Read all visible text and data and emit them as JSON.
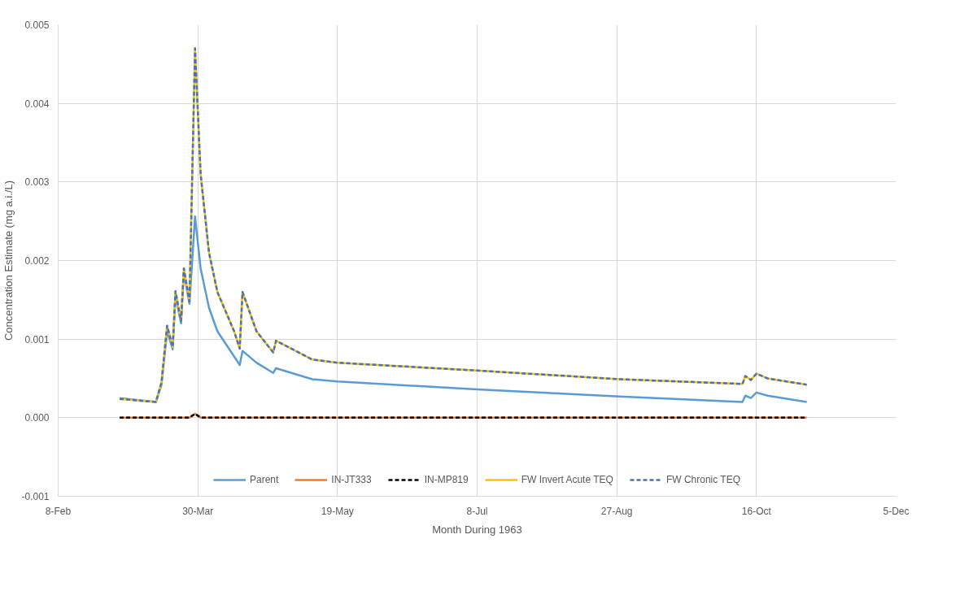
{
  "chart_data": {
    "type": "line",
    "xlabel": "Month During 1963",
    "ylabel": "Concentration Estimate (mg a.i./L)",
    "x": [
      "1963-03-02",
      "1963-03-15",
      "1963-03-17",
      "1963-03-19",
      "1963-03-21",
      "1963-03-22",
      "1963-03-24",
      "1963-03-25",
      "1963-03-27",
      "1963-03-29",
      "1963-03-31",
      "1963-04-03",
      "1963-04-06",
      "1963-04-12",
      "1963-04-14",
      "1963-04-15",
      "1963-04-20",
      "1963-04-26",
      "1963-04-27",
      "1963-05-10",
      "1963-05-19",
      "1963-07-08",
      "1963-08-28",
      "1963-10-11",
      "1963-10-12",
      "1963-10-14",
      "1963-10-16",
      "1963-10-20",
      "1963-11-03"
    ],
    "series": [
      {
        "name": "Parent",
        "color": "#5b9bd5",
        "line_style": "solid",
        "values": [
          0.00025,
          0.0002,
          0.00042,
          0.0011,
          0.00087,
          0.00155,
          0.0012,
          0.00185,
          0.00145,
          0.00256,
          0.0019,
          0.0014,
          0.0011,
          0.00078,
          0.00067,
          0.00085,
          0.0007,
          0.00057,
          0.00063,
          0.00049,
          0.00046,
          0.00036,
          0.00027,
          0.0002,
          0.00028,
          0.00025,
          0.00032,
          0.00028,
          0.0002
        ]
      },
      {
        "name": "IN-JT333",
        "color": "#ed7d31",
        "line_style": "solid",
        "values": [
          0,
          0,
          0,
          0,
          0,
          0,
          0,
          0,
          0,
          5e-05,
          0,
          0,
          0,
          0,
          0,
          0,
          0,
          0,
          0,
          0,
          0,
          0,
          0,
          0,
          0,
          0,
          0,
          0,
          0
        ]
      },
      {
        "name": "IN-MP819",
        "color": "#000000",
        "line_style": "dashed",
        "values": [
          0,
          0,
          0,
          0,
          0,
          0,
          0,
          0,
          0,
          5e-05,
          0,
          0,
          0,
          0,
          0,
          0,
          0,
          0,
          0,
          0,
          0,
          0,
          0,
          0,
          0,
          0,
          0,
          0,
          0
        ]
      },
      {
        "name": "FW Invert Acute TEQ",
        "color": "#ffc000",
        "line_style": "solid",
        "values": [
          0.00024,
          0.0002,
          0.00045,
          0.00117,
          0.0009,
          0.00161,
          0.00123,
          0.0019,
          0.00148,
          0.0047,
          0.0031,
          0.0021,
          0.0016,
          0.0011,
          0.00088,
          0.0016,
          0.0011,
          0.00083,
          0.00098,
          0.00074,
          0.0007,
          0.0006,
          0.00049,
          0.00043,
          0.00053,
          0.00048,
          0.00056,
          0.0005,
          0.00042
        ]
      },
      {
        "name": "FW Chronic TEQ",
        "color": "#4472c4",
        "line_style": "dashed",
        "values": [
          0.00024,
          0.0002,
          0.00045,
          0.00117,
          0.0009,
          0.00161,
          0.00123,
          0.0019,
          0.00148,
          0.0047,
          0.0031,
          0.0021,
          0.0016,
          0.0011,
          0.00088,
          0.0016,
          0.0011,
          0.00083,
          0.00098,
          0.00074,
          0.0007,
          0.0006,
          0.00049,
          0.00043,
          0.00053,
          0.00048,
          0.00056,
          0.0005,
          0.00042
        ]
      }
    ],
    "xlim": [
      "1963-02-08",
      "1963-12-05"
    ],
    "xticks": [
      {
        "value": "1963-02-08",
        "label": "8-Feb"
      },
      {
        "value": "1963-03-30",
        "label": "30-Mar"
      },
      {
        "value": "1963-05-19",
        "label": "19-May"
      },
      {
        "value": "1963-07-08",
        "label": "8-Jul"
      },
      {
        "value": "1963-08-27",
        "label": "27-Aug"
      },
      {
        "value": "1963-10-16",
        "label": "16-Oct"
      },
      {
        "value": "1963-12-05",
        "label": "5-Dec"
      }
    ],
    "ylim": [
      -0.001,
      0.005
    ],
    "yticks": [
      {
        "value": -0.001,
        "label": "-0.001"
      },
      {
        "value": 0,
        "label": "0.000"
      },
      {
        "value": 0.001,
        "label": "0.001"
      },
      {
        "value": 0.002,
        "label": "0.002"
      },
      {
        "value": 0.003,
        "label": "0.003"
      },
      {
        "value": 0.004,
        "label": "0.004"
      },
      {
        "value": 0.005,
        "label": "0.005"
      }
    ],
    "grid": true,
    "legend": "bottom"
  }
}
